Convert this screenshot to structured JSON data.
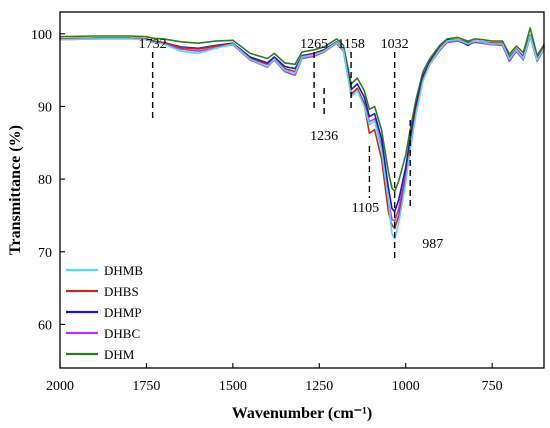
{
  "chart_data": {
    "type": "line",
    "xlabel": "Wavenumber (cm⁻¹)",
    "ylabel": "Transmittance (%)",
    "xlim": [
      2000,
      600
    ],
    "ylim": [
      54,
      103
    ],
    "x_reversed": true,
    "xticks": [
      2000,
      1750,
      1500,
      1250,
      1000,
      750
    ],
    "yticks": [
      60,
      70,
      80,
      90,
      100
    ],
    "grid": false,
    "legend_position": "bottom-left",
    "annotations": [
      {
        "label": "1732",
        "x": 1732,
        "label_position": "above"
      },
      {
        "label": "1265",
        "x": 1265,
        "label_position": "above"
      },
      {
        "label": "1236",
        "x": 1236,
        "label_position": "below"
      },
      {
        "label": "1158",
        "x": 1158,
        "label_position": "above"
      },
      {
        "label": "1105",
        "x": 1105,
        "label_position": "below"
      },
      {
        "label": "1032",
        "x": 1032,
        "label_position": "above"
      },
      {
        "label": "987",
        "x": 987,
        "label_position": "below"
      }
    ],
    "x": [
      2000,
      1900,
      1800,
      1750,
      1732,
      1700,
      1650,
      1600,
      1550,
      1500,
      1450,
      1400,
      1380,
      1350,
      1320,
      1300,
      1265,
      1236,
      1200,
      1180,
      1158,
      1140,
      1120,
      1105,
      1090,
      1070,
      1050,
      1040,
      1032,
      1020,
      1000,
      987,
      970,
      950,
      930,
      900,
      880,
      850,
      820,
      800,
      780,
      750,
      720,
      700,
      680,
      660,
      640,
      620,
      600
    ],
    "series": [
      {
        "name": "DHMB",
        "color": "#5fd3f3",
        "values": [
          99.2,
          99.3,
          99.3,
          99.2,
          98.8,
          98.6,
          97.6,
          97.3,
          98.0,
          98.6,
          96.5,
          95.5,
          96.5,
          95.0,
          94.6,
          96.8,
          97.1,
          97.6,
          98.8,
          97.8,
          91.3,
          92.2,
          90.0,
          87.5,
          88.0,
          84.0,
          77.0,
          72.5,
          71.8,
          74.0,
          79.5,
          84.0,
          89.0,
          93.5,
          95.8,
          98.0,
          99.0,
          99.2,
          98.6,
          99.0,
          98.9,
          98.6,
          98.6,
          96.5,
          97.8,
          96.6,
          99.7,
          96.4,
          98.0
        ]
      },
      {
        "name": "DHBS",
        "color": "#b5301f",
        "values": [
          99.3,
          99.4,
          99.4,
          99.3,
          99.0,
          98.8,
          98.1,
          97.9,
          98.3,
          98.6,
          96.6,
          95.8,
          96.6,
          95.2,
          94.8,
          96.9,
          97.2,
          97.7,
          98.8,
          97.8,
          91.7,
          92.5,
          90.3,
          86.3,
          86.8,
          82.8,
          75.5,
          73.7,
          73.2,
          75.0,
          80.0,
          84.5,
          89.5,
          93.8,
          96.0,
          98.1,
          99.0,
          99.2,
          98.8,
          99.0,
          98.9,
          98.7,
          98.7,
          96.7,
          97.9,
          96.8,
          99.8,
          96.6,
          98.2
        ]
      },
      {
        "name": "DHMP",
        "color": "#1a1ab8",
        "values": [
          99.3,
          99.4,
          99.4,
          99.3,
          99.0,
          98.8,
          98.2,
          98.0,
          98.4,
          98.7,
          96.8,
          96.0,
          96.8,
          95.5,
          95.2,
          97.0,
          97.3,
          97.8,
          98.9,
          97.9,
          92.3,
          93.1,
          91.3,
          88.6,
          89.0,
          85.6,
          78.8,
          76.0,
          75.5,
          77.2,
          81.6,
          85.6,
          90.2,
          94.2,
          96.2,
          98.2,
          99.1,
          99.2,
          98.4,
          99.0,
          98.9,
          98.7,
          98.7,
          96.8,
          97.9,
          96.9,
          99.8,
          96.6,
          98.2
        ]
      },
      {
        "name": "DHBC",
        "color": "#b23be0",
        "values": [
          99.2,
          99.3,
          99.4,
          99.3,
          99.0,
          98.7,
          97.9,
          97.6,
          98.1,
          98.5,
          96.4,
          95.4,
          96.4,
          94.8,
          94.3,
          96.6,
          96.9,
          97.5,
          98.7,
          97.6,
          91.6,
          92.5,
          90.5,
          87.9,
          88.3,
          84.5,
          77.0,
          74.5,
          74.2,
          76.0,
          80.8,
          85.0,
          89.8,
          93.9,
          95.8,
          97.8,
          98.8,
          99.0,
          98.6,
          98.8,
          98.7,
          98.5,
          98.4,
          96.2,
          97.6,
          96.4,
          99.6,
          96.2,
          97.9
        ]
      },
      {
        "name": "DHM",
        "color": "#2f7a22",
        "values": [
          99.6,
          99.7,
          99.7,
          99.6,
          99.4,
          99.3,
          98.9,
          98.7,
          99.0,
          99.1,
          97.3,
          96.6,
          97.3,
          96.0,
          95.8,
          97.5,
          97.8,
          98.2,
          99.3,
          98.4,
          93.1,
          93.9,
          92.2,
          89.6,
          90.0,
          86.8,
          81.0,
          78.8,
          78.3,
          79.8,
          83.3,
          86.8,
          91.0,
          94.8,
          96.6,
          98.5,
          99.3,
          99.5,
          99.0,
          99.3,
          99.2,
          99.0,
          99.0,
          97.2,
          98.3,
          97.4,
          100.8,
          97.0,
          98.5
        ]
      }
    ]
  }
}
